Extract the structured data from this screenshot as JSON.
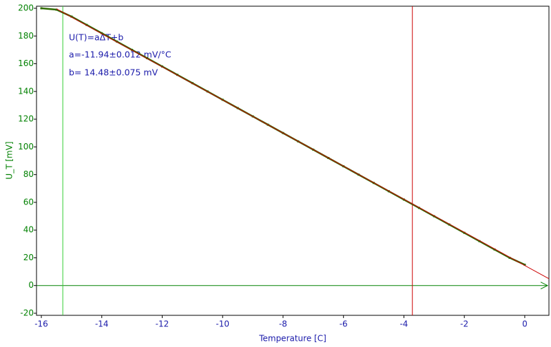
{
  "chart_data": {
    "type": "scatter",
    "x_label": "Temperature [C]",
    "y_label": "U_T [mV]",
    "annotations": [
      "U(T)=aΔT+b",
      "a=-11.94±0.012 mV/°C",
      "b= 14.48±0.075 mV"
    ],
    "xlim": [
      -16.16,
      0.8
    ],
    "ylim": [
      -21.5,
      201.5
    ],
    "xticks": [
      -16,
      -14,
      -12,
      -10,
      -8,
      -6,
      -4,
      -2,
      0
    ],
    "yticks": [
      -20,
      0,
      20,
      40,
      60,
      80,
      100,
      120,
      140,
      160,
      180,
      200
    ],
    "zero_line_color": "#008000",
    "cursors": [
      {
        "x": -15.29,
        "color": "#33cc33"
      },
      {
        "x": -3.72,
        "color": "#cc0000"
      }
    ],
    "series": [
      {
        "style": "markers",
        "color": "#2e6b00",
        "x": [
          -16,
          -15.5,
          -15,
          -14.5,
          -14,
          -13.5,
          -13,
          -12.5,
          -12,
          -11.5,
          -11,
          -10.5,
          -10,
          -9.5,
          -9,
          -8.5,
          -8,
          -7.5,
          -7,
          -6.5,
          -6,
          -5.5,
          -5,
          -4.5,
          -4,
          -3.5,
          -3,
          -2.5,
          -2,
          -1.5,
          -1,
          -0.5,
          0
        ],
        "values": [
          200,
          199,
          194,
          188,
          182,
          176,
          170,
          164,
          158,
          152,
          146,
          140,
          134,
          128,
          122,
          116,
          110,
          104,
          98,
          92,
          86,
          80,
          74,
          68,
          62,
          56,
          50,
          44,
          38,
          32,
          26,
          20,
          15
        ]
      },
      {
        "style": "line",
        "color": "#cc0000",
        "x": [
          -15.5,
          0.8
        ],
        "values": [
          199.6,
          4.9
        ]
      }
    ]
  }
}
